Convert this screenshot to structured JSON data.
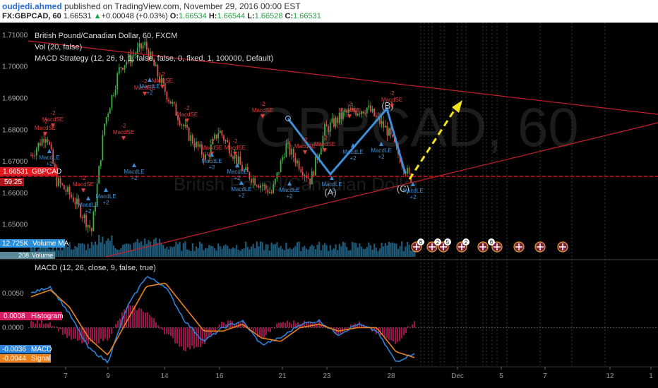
{
  "header": {
    "author": "oudjedi.ahmed",
    "published": " published on TradingView.com, November 29, 2016 00:00 EST",
    "symbol": "FX:GBPCAD, 60",
    "price": "1.66531",
    "change": "+0.00048 (+0.03%)",
    "o_label": "O:",
    "o": "1.66534",
    "h_label": "H:",
    "h": "1.66544",
    "l_label": "L:",
    "l": "1.66528",
    "c_label": "C:",
    "c": "1.66531"
  },
  "watermark": {
    "symbol": "GBPCAD, 60",
    "name": "British Pound/Canadian Dollar"
  },
  "main_pane": {
    "title": "British Pound/Canadian Dollar, 60, FXCM",
    "vol_legend": "Vol (20, false)",
    "strategy_legend": "MACD Strategy (12, 26, 9, 1, false, false, 0, fixed, 1, 100000, Default)",
    "price_badge": "1.66531",
    "countdown": "59:25",
    "symbol_tag": "GBPCAD",
    "volume_badge": "12.725K",
    "volume_ma_tag": "Volume MA",
    "volume_second": "208",
    "volume_tag": "Volume",
    "wave_labels": [
      "(A)",
      "(B)",
      "(C)"
    ],
    "signal_short": "MacdSE",
    "signal_long": "MacdLE",
    "qty_short": "-2",
    "qty_long": "+2"
  },
  "macd_pane": {
    "title": "MACD (12, 26, close, 9, false, true)",
    "hist_badge": "0.0008",
    "hist_tag": "Histogram",
    "macd_badge": "-0.0036",
    "macd_tag": "MACD",
    "signal_badge": "-0.0044",
    "signal_tag": "Signal"
  },
  "events": [
    "6",
    "2",
    "5",
    "2",
    "6"
  ],
  "colors": {
    "background": "#000000",
    "up_candle": "#3cb043",
    "down_candle": "#d9534f",
    "trendline": "#c8202a",
    "price_line": "#e0191f",
    "wave": "#3e8fd8",
    "projection": "#f0e21c",
    "volume": "#1f5a7a",
    "macd": "#2b82d8",
    "signal": "#e8821e",
    "histogram": "#c2185b"
  },
  "chart_data": [
    {
      "type": "candlestick",
      "title": "British Pound/Canadian Dollar, 60, FXCM",
      "y_ticks": [
        "1.65000",
        "1.66000",
        "1.67000",
        "1.68000",
        "1.69000",
        "1.70000",
        "1.71000"
      ],
      "x_ticks": [
        "7",
        "9",
        "14",
        "16",
        "21",
        "23",
        "28",
        "Dec",
        "5",
        "7",
        "12",
        "1"
      ],
      "ylim": [
        1.643,
        1.714
      ],
      "last_price": 1.66531,
      "close_path": [
        [
          "7",
          1.672
        ],
        [
          "7",
          1.679
        ],
        [
          "7",
          1.664
        ],
        [
          "9",
          1.658
        ],
        [
          "9",
          1.648
        ],
        [
          "9",
          1.682
        ],
        [
          "14",
          1.7
        ],
        [
          "14",
          1.707
        ],
        [
          "14",
          1.694
        ],
        [
          "16",
          1.679
        ],
        [
          "16",
          1.671
        ],
        [
          "16",
          1.68
        ],
        [
          "21",
          1.667
        ],
        [
          "21",
          1.66
        ],
        [
          "23",
          1.675
        ],
        [
          "23",
          1.664
        ],
        [
          "23",
          1.68
        ],
        [
          "28",
          1.685
        ],
        [
          "28",
          1.687
        ],
        [
          "28",
          1.68
        ],
        [
          "Dec",
          1.665
        ]
      ]
    },
    {
      "type": "line",
      "title": "MACD (12, 26, close, 9, false, true)",
      "y_ticks": [
        "0.0050",
        "0.0000"
      ],
      "ylim": [
        -0.0055,
        0.0095
      ],
      "series": [
        {
          "name": "MACD",
          "values": [
            0.005,
            0.006,
            0.002,
            -0.003,
            -0.005,
            0.003,
            0.0075,
            0.006,
            0.001,
            -0.002,
            0.0,
            0.001,
            -0.0025,
            -0.0015,
            0.0005,
            0.001,
            -0.001,
            0.0005,
            -0.0005,
            -0.005,
            -0.0036
          ]
        },
        {
          "name": "Signal",
          "values": [
            0.0045,
            0.0055,
            0.003,
            -0.0015,
            -0.004,
            0.001,
            0.006,
            0.0065,
            0.003,
            -0.0005,
            -0.0005,
            0.0005,
            -0.0015,
            -0.002,
            0.0,
            0.0005,
            -0.0005,
            0.0,
            0.0,
            -0.0035,
            -0.0044
          ]
        }
      ],
      "histogram_last": 0.0008
    }
  ]
}
